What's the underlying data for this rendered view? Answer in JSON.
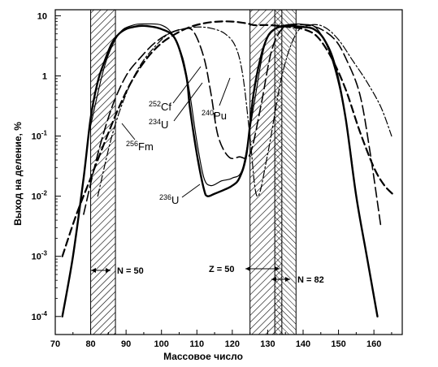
{
  "chart_data": {
    "type": "line",
    "title": "",
    "xlabel": "Массовое число",
    "ylabel": "Выход на деление, %",
    "xlim": [
      70,
      168
    ],
    "ylim_log10": [
      -4.3,
      1.1
    ],
    "yscale": "log",
    "grid": false,
    "x_ticks": [
      "70",
      "80",
      "90",
      "100",
      "110",
      "120",
      "130",
      "140",
      "150",
      "160"
    ],
    "y_ticks": [
      {
        "base": "10",
        "exp": "-4"
      },
      {
        "base": "10",
        "exp": "-3"
      },
      {
        "base": "10",
        "exp": "-2"
      },
      {
        "base": "10",
        "exp": "-1"
      },
      {
        "base": "1",
        "exp": ""
      },
      {
        "base": "10",
        "exp": ""
      }
    ],
    "shaded_bands": [
      {
        "x": [
          80,
          87
        ],
        "label": "N = 50"
      },
      {
        "x": [
          125,
          134
        ],
        "label": "Z = 50"
      },
      {
        "x": [
          132,
          138
        ],
        "label": "N = 82"
      }
    ],
    "series": [
      {
        "name": "236U",
        "name_mass": "236",
        "name_el": "U",
        "style": "solid-thick",
        "x": [
          72,
          75,
          78,
          80,
          82,
          84,
          86,
          88,
          90,
          92,
          95,
          100,
          104,
          107,
          108,
          110,
          112,
          113,
          115,
          118,
          120,
          122,
          124,
          126,
          128,
          130,
          132,
          134,
          136,
          138,
          140,
          143,
          146,
          149,
          152,
          155,
          158,
          161
        ],
        "y": [
          0.0001,
          0.001,
          0.02,
          0.2,
          0.8,
          1.8,
          3.5,
          5,
          6,
          6.5,
          6.8,
          6,
          4,
          1,
          0.3,
          0.05,
          0.013,
          0.01,
          0.011,
          0.013,
          0.015,
          0.02,
          0.05,
          0.5,
          2,
          4.5,
          6,
          6.7,
          6.8,
          6.7,
          6.5,
          6,
          4,
          1.5,
          0.2,
          0.01,
          0.001,
          0.0001
        ]
      },
      {
        "name": "234U",
        "name_mass": "234",
        "name_el": "U",
        "style": "solid-thin",
        "x": [
          80,
          84,
          88,
          92,
          96,
          100,
          103,
          106,
          108,
          110,
          112,
          114,
          117,
          120,
          123,
          126,
          129,
          132,
          135,
          140,
          144,
          148,
          152,
          155
        ],
        "y": [
          0.15,
          1.5,
          5,
          7,
          7.3,
          7,
          5,
          2,
          0.5,
          0.08,
          0.02,
          0.015,
          0.018,
          0.02,
          0.03,
          0.3,
          3,
          6,
          7,
          7.2,
          6,
          2,
          0.2,
          0.01
        ]
      },
      {
        "name": "240Pu",
        "name_mass": "240",
        "name_el": "Pu",
        "style": "dash-long",
        "x": [
          78,
          82,
          86,
          90,
          94,
          98,
          102,
          106,
          109,
          112,
          114,
          116,
          119,
          122,
          125,
          128,
          131,
          134,
          137,
          141,
          145,
          149,
          152,
          156,
          159,
          162
        ],
        "y": [
          0.005,
          0.05,
          0.3,
          1,
          2,
          3.5,
          5,
          6,
          5.5,
          2,
          0.5,
          0.1,
          0.045,
          0.045,
          0.05,
          0.3,
          2.5,
          6,
          7,
          7,
          6,
          4,
          2,
          0.5,
          0.05,
          0.003
        ]
      },
      {
        "name": "252Cf",
        "name_mass": "252",
        "name_el": "Cf",
        "style": "dash-dot",
        "x": [
          82,
          86,
          90,
          94,
          98,
          102,
          106,
          110,
          114,
          118,
          121,
          123,
          125,
          127,
          130,
          134,
          138,
          142,
          146,
          150,
          154,
          158,
          162,
          165
        ],
        "y": [
          0.01,
          0.1,
          0.5,
          1.5,
          3,
          5,
          6,
          6.5,
          6.2,
          5,
          3,
          1,
          0.1,
          0.01,
          0.05,
          1,
          5,
          7,
          6.5,
          4,
          1.8,
          0.8,
          0.3,
          0.1
        ]
      },
      {
        "name": "256Fm",
        "name_mass": "256",
        "name_el": "Fm",
        "style": "dash-thick",
        "x": [
          72,
          76,
          80,
          84,
          88,
          92,
          96,
          100,
          104,
          108,
          112,
          116,
          120,
          124,
          126,
          128,
          130,
          133,
          136,
          140,
          144,
          148,
          152,
          156,
          160,
          163,
          166
        ],
        "y": [
          0.001,
          0.005,
          0.02,
          0.08,
          0.3,
          0.9,
          2,
          3.5,
          5,
          6.5,
          7.5,
          8,
          8,
          7.5,
          7,
          7,
          7,
          6.8,
          6.5,
          6,
          4.5,
          2,
          0.6,
          0.12,
          0.03,
          0.015,
          0.01
        ]
      }
    ],
    "annotations": [
      "N = 50",
      "Z = 50",
      "N = 82"
    ]
  }
}
